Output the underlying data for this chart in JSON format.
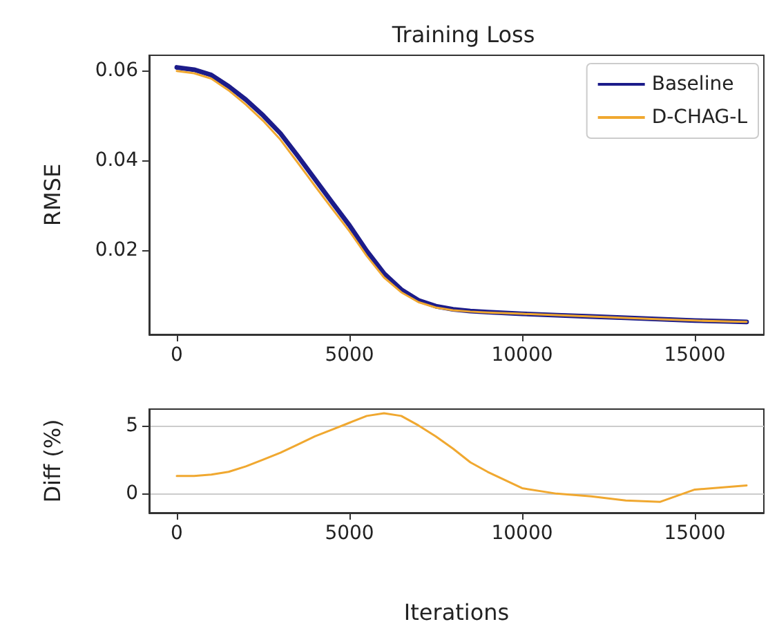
{
  "chart_data": [
    {
      "type": "line",
      "title": "Training Loss",
      "ylabel": "RMSE",
      "x": [
        0,
        500,
        1000,
        1500,
        2000,
        2500,
        3000,
        3500,
        4000,
        4500,
        5000,
        5500,
        6000,
        6500,
        7000,
        7500,
        8000,
        8500,
        9000,
        10000,
        11000,
        12000,
        13000,
        14000,
        15000,
        16000,
        16500
      ],
      "series": [
        {
          "name": "Baseline",
          "color": "#1c1c8a",
          "values": [
            0.0607,
            0.0602,
            0.059,
            0.0565,
            0.0535,
            0.05,
            0.046,
            0.041,
            0.0358,
            0.0306,
            0.0255,
            0.0198,
            0.0148,
            0.0112,
            0.0088,
            0.0075,
            0.0068,
            0.0064,
            0.0062,
            0.0058,
            0.0055,
            0.0052,
            0.0049,
            0.0046,
            0.0043,
            0.0041,
            0.004
          ]
        },
        {
          "name": "D-CHAG-L",
          "color": "#f0a830",
          "values": [
            0.0599,
            0.0594,
            0.0582,
            0.0556,
            0.0524,
            0.0488,
            0.0446,
            0.0395,
            0.0343,
            0.0292,
            0.0242,
            0.0187,
            0.0139,
            0.0106,
            0.0084,
            0.0072,
            0.0066,
            0.0063,
            0.0061,
            0.0058,
            0.0055,
            0.0052,
            0.0049,
            0.0046,
            0.0043,
            0.0041,
            0.004
          ]
        }
      ],
      "xlim": [
        -800,
        17000
      ],
      "xticks": [
        0,
        5000,
        10000,
        15000
      ],
      "ylim": [
        0.0012,
        0.0634
      ],
      "yticks": [
        0.02,
        0.04,
        0.06
      ],
      "legend": "top right",
      "grid": false,
      "marker": "none",
      "line_style": "solid"
    },
    {
      "type": "line",
      "ylabel": "Diff (%)",
      "xlabel": "Iterations",
      "x": [
        0,
        500,
        1000,
        1500,
        2000,
        2500,
        3000,
        3500,
        4000,
        4500,
        5000,
        5500,
        6000,
        6500,
        7000,
        7500,
        8000,
        8500,
        9000,
        10000,
        11000,
        12000,
        13000,
        14000,
        15000,
        16000,
        16500
      ],
      "series": [
        {
          "color": "#f0a830",
          "values": [
            1.3,
            1.3,
            1.4,
            1.6,
            2.0,
            2.5,
            3.0,
            3.6,
            4.2,
            4.7,
            5.2,
            5.7,
            5.9,
            5.7,
            5.0,
            4.2,
            3.3,
            2.3,
            1.6,
            0.4,
            0.0,
            -0.2,
            -0.5,
            -0.6,
            0.3,
            0.5,
            0.6
          ]
        }
      ],
      "xlim": [
        -800,
        17000
      ],
      "xticks": [
        0,
        5000,
        10000,
        15000
      ],
      "ylim": [
        -1.4,
        6.2
      ],
      "yticks": [
        0,
        5
      ],
      "grid": "y",
      "marker": "none",
      "line_style": "solid"
    }
  ]
}
